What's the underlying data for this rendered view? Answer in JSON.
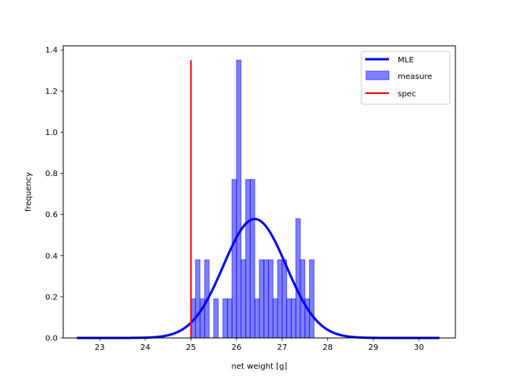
{
  "chart_data": {
    "type": "bar",
    "title": "",
    "xlabel": "net weight [g]",
    "ylabel": "frequency",
    "xlim": [
      22.2,
      30.8
    ],
    "ylim": [
      0,
      1.42
    ],
    "xticks": [
      23,
      24,
      25,
      26,
      27,
      28,
      29,
      30
    ],
    "yticks": [
      0.0,
      0.2,
      0.4,
      0.6,
      0.8,
      1.0,
      1.2,
      1.4
    ],
    "grid": false,
    "legend_position": "top-right",
    "histogram": {
      "name": "measure",
      "color": "#0000ff",
      "bin_edges": [
        25.0,
        25.1,
        25.2,
        25.3,
        25.4,
        25.5,
        25.6,
        25.7,
        25.8,
        25.9,
        26.0,
        26.1,
        26.2,
        26.3,
        26.4,
        26.5,
        26.6,
        26.7,
        26.8,
        26.9,
        27.0,
        27.1,
        27.2,
        27.3,
        27.4,
        27.5,
        27.6,
        27.7
      ],
      "values": [
        0.19,
        0.38,
        0.19,
        0.38,
        0.0,
        0.19,
        0.0,
        0.19,
        0.19,
        0.77,
        1.35,
        0.38,
        0.77,
        0.77,
        0.19,
        0.38,
        0.38,
        0.38,
        0.19,
        0.38,
        0.38,
        0.19,
        0.19,
        0.58,
        0.38,
        0.19,
        0.38
      ]
    },
    "mle_curve": {
      "name": "MLE",
      "color": "#0000ff",
      "mean": 26.4,
      "std": 0.69,
      "x_range": [
        22.5,
        30.45
      ]
    },
    "spec_line": {
      "name": "spec",
      "color": "#ff0000",
      "x": 25.0,
      "y_range": [
        0,
        1.35
      ]
    },
    "legend": [
      "MLE",
      "measure",
      "spec"
    ]
  }
}
